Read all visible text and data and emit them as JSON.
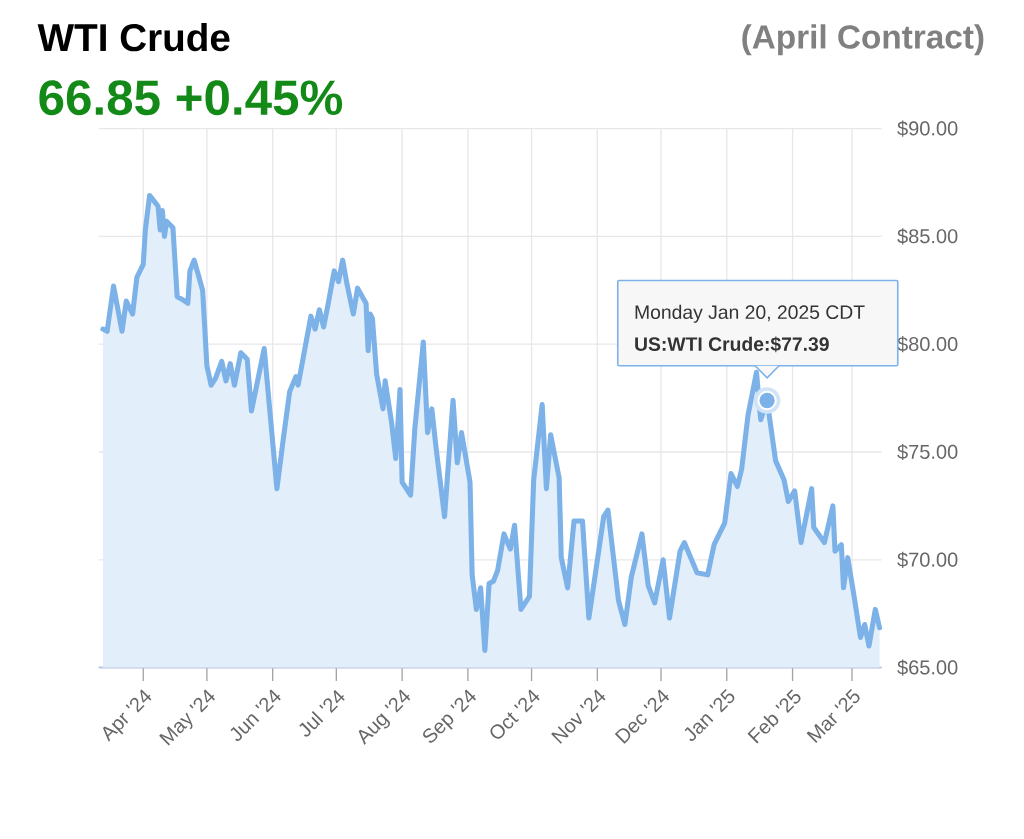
{
  "chart_data": {
    "type": "area",
    "title": "WTI Crude",
    "subtitle": "66.85 +0.45%",
    "annotations": [
      "(April Contract)",
      "Monday Jan 20, 2025 CDT",
      {
        "text": "US:WTI Crude:$77.39",
        "x": "2025-01-20",
        "y": 77.39
      }
    ],
    "color": "#7cb2e8",
    "grid": true,
    "marker": "none",
    "line_style": "solid",
    "xlim": [
      "2024-03-11",
      "2025-03-15"
    ],
    "ylim": [
      65,
      90
    ],
    "xticks": [
      {
        "value": "2024-04-01",
        "label": "Apr '24"
      },
      {
        "value": "2024-05-01",
        "label": "May '24"
      },
      {
        "value": "2024-06-01",
        "label": "Jun '24"
      },
      {
        "value": "2024-07-01",
        "label": "Jul '24"
      },
      {
        "value": "2024-08-01",
        "label": "Aug '24"
      },
      {
        "value": "2024-09-01",
        "label": "Sep '24"
      },
      {
        "value": "2024-10-01",
        "label": "Oct '24"
      },
      {
        "value": "2024-11-01",
        "label": "Nov '24"
      },
      {
        "value": "2024-12-01",
        "label": "Dec '24"
      },
      {
        "value": "2025-01-01",
        "label": "Jan '25"
      },
      {
        "value": "2025-02-01",
        "label": "Feb '25"
      },
      {
        "value": "2025-03-01",
        "label": "Mar '25"
      }
    ],
    "yticks": [
      {
        "value": 65,
        "label": "$65.00"
      },
      {
        "value": 70,
        "label": "$70.00"
      },
      {
        "value": 75,
        "label": "$75.00"
      },
      {
        "value": 80,
        "label": "$80.00"
      },
      {
        "value": 85,
        "label": "$85.00"
      },
      {
        "value": 90,
        "label": "$90.00"
      }
    ],
    "x": [
      "2024-03-13",
      "2024-03-15",
      "2024-03-18",
      "2024-03-22",
      "2024-03-24",
      "2024-03-27",
      "2024-03-29",
      "2024-04-01",
      "2024-04-02",
      "2024-04-04",
      "2024-04-08",
      "2024-04-09",
      "2024-04-10",
      "2024-04-11",
      "2024-04-12",
      "2024-04-15",
      "2024-04-17",
      "2024-04-19",
      "2024-04-22",
      "2024-04-23",
      "2024-04-25",
      "2024-04-29",
      "2024-05-01",
      "2024-05-03",
      "2024-05-05",
      "2024-05-08",
      "2024-05-10",
      "2024-05-12",
      "2024-05-14",
      "2024-05-17",
      "2024-05-20",
      "2024-05-22",
      "2024-05-28",
      "2024-06-03",
      "2024-06-06",
      "2024-06-09",
      "2024-06-12",
      "2024-06-13",
      "2024-06-19",
      "2024-06-21",
      "2024-06-23",
      "2024-06-25",
      "2024-06-27",
      "2024-06-30",
      "2024-07-02",
      "2024-07-04",
      "2024-07-06",
      "2024-07-09",
      "2024-07-11",
      "2024-07-15",
      "2024-07-16",
      "2024-07-17",
      "2024-07-18",
      "2024-07-20",
      "2024-07-23",
      "2024-07-24",
      "2024-07-27",
      "2024-07-29",
      "2024-07-31",
      "2024-08-01",
      "2024-08-05",
      "2024-08-07",
      "2024-08-11",
      "2024-08-13",
      "2024-08-15",
      "2024-08-17",
      "2024-08-21",
      "2024-08-25",
      "2024-08-27",
      "2024-08-29",
      "2024-09-02",
      "2024-09-03",
      "2024-09-05",
      "2024-09-07",
      "2024-09-09",
      "2024-09-11",
      "2024-09-13",
      "2024-09-15",
      "2024-09-18",
      "2024-09-21",
      "2024-09-23",
      "2024-09-26",
      "2024-09-30",
      "2024-10-02",
      "2024-10-06",
      "2024-10-08",
      "2024-10-10",
      "2024-10-14",
      "2024-10-15",
      "2024-10-18",
      "2024-10-21",
      "2024-10-25",
      "2024-10-28",
      "2024-10-31",
      "2024-11-04",
      "2024-11-06",
      "2024-11-11",
      "2024-11-14",
      "2024-11-17",
      "2024-11-22",
      "2024-11-25",
      "2024-11-28",
      "2024-12-02",
      "2024-12-05",
      "2024-12-10",
      "2024-12-12",
      "2024-12-18",
      "2024-12-23",
      "2024-12-26",
      "2024-12-31",
      "2025-01-03",
      "2025-01-06",
      "2025-01-08",
      "2025-01-11",
      "2025-01-15",
      "2025-01-17",
      "2025-01-20",
      "2025-01-24",
      "2025-01-28",
      "2025-01-30",
      "2025-02-02",
      "2025-02-05",
      "2025-02-10",
      "2025-02-11",
      "2025-02-16",
      "2025-02-20",
      "2025-02-21",
      "2025-02-24",
      "2025-02-25",
      "2025-02-27",
      "2025-03-02",
      "2025-03-05",
      "2025-03-07",
      "2025-03-09",
      "2025-03-12",
      "2025-03-14"
    ],
    "values": [
      80.7,
      80.6,
      82.7,
      80.6,
      82.0,
      81.4,
      83.1,
      83.7,
      85.3,
      86.9,
      86.4,
      85.3,
      86.2,
      85.0,
      85.7,
      85.4,
      82.2,
      82.1,
      81.9,
      83.4,
      83.9,
      82.5,
      79.0,
      78.1,
      78.4,
      79.2,
      78.3,
      79.1,
      78.1,
      79.6,
      79.3,
      76.9,
      79.8,
      73.3,
      75.6,
      77.8,
      78.5,
      78.1,
      81.3,
      80.7,
      81.6,
      80.8,
      81.8,
      83.4,
      82.9,
      83.9,
      82.8,
      81.4,
      82.6,
      81.9,
      79.7,
      81.4,
      81.2,
      78.6,
      77.0,
      78.3,
      76.4,
      74.7,
      77.9,
      73.6,
      73.0,
      76.1,
      80.1,
      75.9,
      77.0,
      75.2,
      72.0,
      77.4,
      74.5,
      75.9,
      73.6,
      69.3,
      67.7,
      68.7,
      65.8,
      68.9,
      69.0,
      69.5,
      71.2,
      70.5,
      71.6,
      67.7,
      68.3,
      73.7,
      77.2,
      73.3,
      75.8,
      73.8,
      70.1,
      68.7,
      71.8,
      71.8,
      67.3,
      69.3,
      72.0,
      72.3,
      68.1,
      67.0,
      69.2,
      71.2,
      68.8,
      68.0,
      70.0,
      67.3,
      70.4,
      70.8,
      69.4,
      69.3,
      70.7,
      71.7,
      74.0,
      73.4,
      74.2,
      76.7,
      78.7,
      76.5,
      77.39,
      74.6,
      73.7,
      72.7,
      73.2,
      70.8,
      73.3,
      71.5,
      70.8,
      72.5,
      70.4,
      70.7,
      68.7,
      70.1,
      68.3,
      66.4,
      67.0,
      66.0,
      67.7,
      66.85
    ]
  }
}
